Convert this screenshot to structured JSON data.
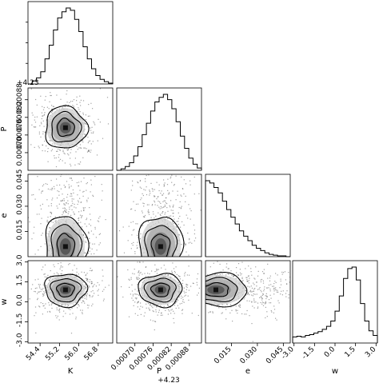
{
  "chart_data": {
    "type": "corner",
    "parameters": [
      {
        "key": "K",
        "label": "K",
        "range": [
          53.9,
          57.4
        ],
        "ticks": [
          54.4,
          55.2,
          56.0,
          56.8
        ],
        "tick_labels": [
          "54.4",
          "55.2",
          "56.0",
          "56.8"
        ]
      },
      {
        "key": "P",
        "label": "P",
        "offset_label": "+4.23",
        "range": [
          0.00064,
          0.00092
        ],
        "ticks": [
          0.0007,
          0.00076,
          0.00082,
          0.00088
        ],
        "tick_labels": [
          "0.00070",
          "0.00076",
          "0.00082",
          "0.00088"
        ]
      },
      {
        "key": "e",
        "label": "e",
        "range": [
          0.0,
          0.049
        ],
        "ticks": [
          0.015,
          0.03,
          0.045
        ],
        "tick_labels": [
          "0.015",
          "0.030",
          "0.045"
        ]
      },
      {
        "key": "w",
        "label": "w",
        "range": [
          -3.1,
          3.1
        ],
        "ticks": [
          -3.0,
          -1.5,
          0.0,
          1.5,
          3.0
        ],
        "tick_labels": [
          "-3.0",
          "-1.5",
          "0.0",
          "1.5",
          "3.0"
        ]
      }
    ],
    "row_offset_label": "+4.23",
    "histograms": {
      "K": [
        0.0,
        0.04,
        0.08,
        0.16,
        0.33,
        0.51,
        0.71,
        0.87,
        0.95,
        1.0,
        0.97,
        0.85,
        0.69,
        0.49,
        0.33,
        0.2,
        0.11,
        0.06,
        0.03,
        0.01
      ],
      "P": [
        0.0,
        0.02,
        0.05,
        0.1,
        0.19,
        0.31,
        0.47,
        0.62,
        0.78,
        0.9,
        0.96,
        1.0,
        0.93,
        0.81,
        0.64,
        0.45,
        0.29,
        0.16,
        0.08,
        0.03
      ],
      "e": [
        1.0,
        0.97,
        0.91,
        0.84,
        0.73,
        0.62,
        0.52,
        0.43,
        0.34,
        0.27,
        0.21,
        0.15,
        0.11,
        0.08,
        0.05,
        0.03,
        0.02,
        0.01,
        0.01,
        0.0
      ],
      "w": [
        0.08,
        0.09,
        0.08,
        0.1,
        0.11,
        0.13,
        0.15,
        0.18,
        0.22,
        0.29,
        0.42,
        0.62,
        0.85,
        0.98,
        1.0,
        0.83,
        0.52,
        0.29,
        0.16,
        0.1
      ]
    },
    "centers": {
      "K": 55.45,
      "P": 0.000785,
      "e": 0.006,
      "w": 0.9
    },
    "spreads": {
      "K": 0.42,
      "P": 3.5e-05,
      "e": 0.009,
      "w": 0.6
    }
  }
}
